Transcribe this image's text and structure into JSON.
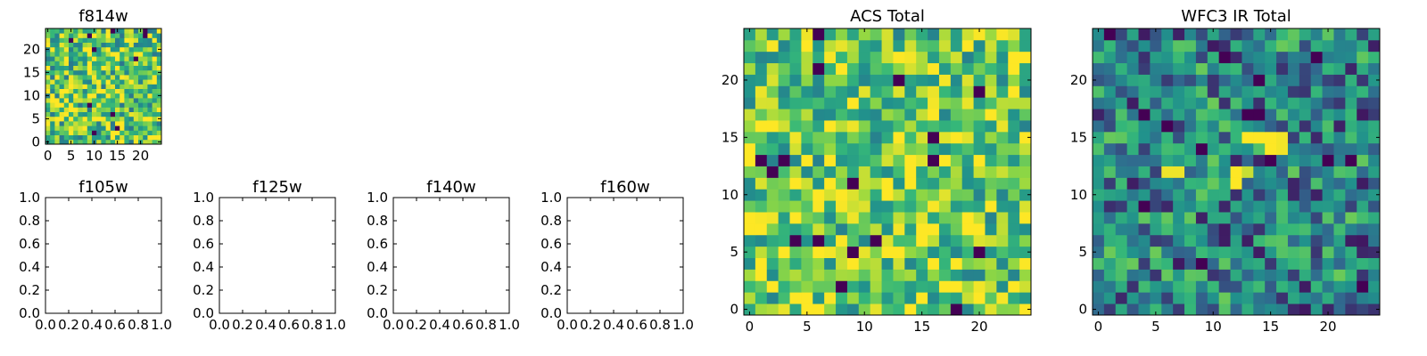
{
  "figure": {
    "colormap": [
      "#440154",
      "#31688e",
      "#21918c",
      "#35b779",
      "#90d743",
      "#fde725"
    ],
    "frame_color": "#000000"
  },
  "chart_data": [
    {
      "type": "heatmap",
      "title": "f814w",
      "x_range": [
        -0.5,
        24.5
      ],
      "y_range": [
        -0.5,
        24.5
      ],
      "x_ticks": [
        0,
        5,
        10,
        15,
        20
      ],
      "y_ticks": [
        0,
        5,
        10,
        15,
        20
      ],
      "grid_size": 25,
      "seed": 11,
      "base_level": 0.68,
      "noise": 0.42,
      "hot_pixels": [],
      "note_style": "yellow-green noise with scattered dark pixels"
    },
    {
      "type": "empty",
      "title": "f105w",
      "x_range": [
        0.0,
        1.0
      ],
      "y_range": [
        0.0,
        1.0
      ],
      "x_ticks": [
        "0.0",
        "0.2",
        "0.4",
        "0.6",
        "0.8",
        "1.0"
      ],
      "y_ticks": [
        "0.0",
        "0.2",
        "0.4",
        "0.6",
        "0.8",
        "1.0"
      ]
    },
    {
      "type": "empty",
      "title": "f125w",
      "x_range": [
        0.0,
        1.0
      ],
      "y_range": [
        0.0,
        1.0
      ],
      "x_ticks": [
        "0.0",
        "0.2",
        "0.4",
        "0.6",
        "0.8",
        "1.0"
      ],
      "y_ticks": [
        "0.0",
        "0.2",
        "0.4",
        "0.6",
        "0.8",
        "1.0"
      ]
    },
    {
      "type": "empty",
      "title": "f140w",
      "x_range": [
        0.0,
        1.0
      ],
      "y_range": [
        0.0,
        1.0
      ],
      "x_ticks": [
        "0.0",
        "0.2",
        "0.4",
        "0.6",
        "0.8",
        "1.0"
      ],
      "y_ticks": [
        "0.0",
        "0.2",
        "0.4",
        "0.6",
        "0.8",
        "1.0"
      ]
    },
    {
      "type": "empty",
      "title": "f160w",
      "x_range": [
        0.0,
        1.0
      ],
      "y_range": [
        0.0,
        1.0
      ],
      "x_ticks": [
        "0.0",
        "0.2",
        "0.4",
        "0.6",
        "0.8",
        "1.0"
      ],
      "y_ticks": [
        "0.0",
        "0.2",
        "0.4",
        "0.6",
        "0.8",
        "1.0"
      ]
    },
    {
      "type": "heatmap",
      "title": "ACS Total",
      "x_range": [
        -0.5,
        24.5
      ],
      "y_range": [
        -0.5,
        24.5
      ],
      "x_ticks": [
        0,
        5,
        10,
        15,
        20
      ],
      "y_ticks": [
        0,
        5,
        10,
        15,
        20
      ],
      "grid_size": 25,
      "seed": 29,
      "base_level": 0.7,
      "noise": 0.38,
      "hot_pixels": []
    },
    {
      "type": "heatmap",
      "title": "WFC3 IR Total",
      "x_range": [
        -0.5,
        24.5
      ],
      "y_range": [
        -0.5,
        24.5
      ],
      "x_ticks": [
        0,
        5,
        10,
        15,
        20
      ],
      "y_ticks": [
        0,
        5,
        10,
        15,
        20
      ],
      "grid_size": 25,
      "seed": 53,
      "base_level": 0.38,
      "noise": 0.34,
      "hot_pixels": [
        {
          "x": 6,
          "y": 12,
          "v": 0.97
        },
        {
          "x": 7,
          "y": 12,
          "v": 0.97
        },
        {
          "x": 12,
          "y": 12,
          "v": 1.0
        },
        {
          "x": 12,
          "y": 11,
          "v": 1.0
        },
        {
          "x": 13,
          "y": 12,
          "v": 0.9
        },
        {
          "x": 13,
          "y": 15,
          "v": 1.0
        },
        {
          "x": 14,
          "y": 15,
          "v": 1.0
        },
        {
          "x": 15,
          "y": 15,
          "v": 1.0
        },
        {
          "x": 15,
          "y": 14,
          "v": 1.0
        },
        {
          "x": 16,
          "y": 15,
          "v": 0.98
        },
        {
          "x": 16,
          "y": 14,
          "v": 0.98
        },
        {
          "x": 13,
          "y": 17,
          "v": 0.0
        },
        {
          "x": 14,
          "y": 17,
          "v": 0.0
        },
        {
          "x": 4,
          "y": 17,
          "v": 0.0
        },
        {
          "x": 22,
          "y": 13,
          "v": 0.0
        },
        {
          "x": 23,
          "y": 2,
          "v": 0.0
        },
        {
          "x": 11,
          "y": 22,
          "v": 0.0
        }
      ]
    }
  ]
}
